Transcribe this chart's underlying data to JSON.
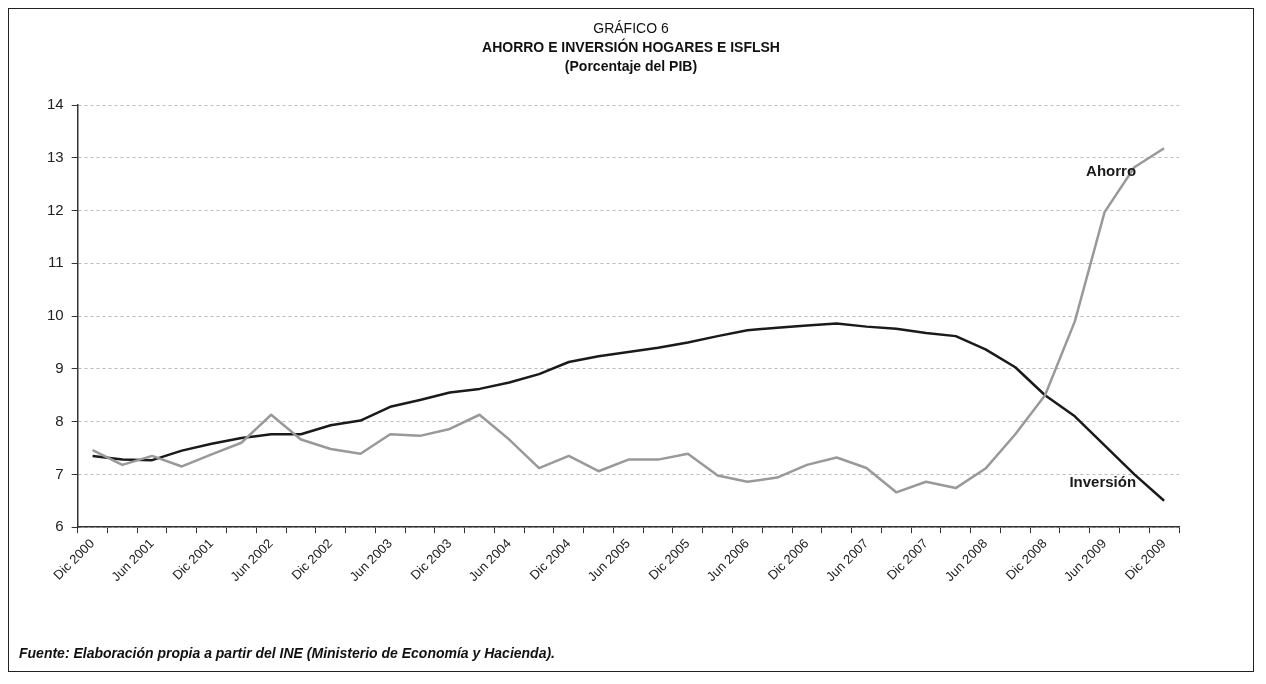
{
  "chart_data": {
    "type": "line",
    "title": "AHORRO E INVERSIÓN HOGARES E ISFLSH",
    "subtitle": "(Porcentaje del PIB)",
    "annotations": [
      "GRÁFICO 6",
      "Fuente: Elaboración propia a partir del INE (Ministerio de Economía y Hacienda)."
    ],
    "categories": [
      "Dic 2000",
      null,
      "Jun 2001",
      null,
      "Dic 2001",
      null,
      "Jun 2002",
      null,
      "Dic 2002",
      null,
      "Jun 2003",
      null,
      "Dic 2003",
      null,
      "Jun 2004",
      null,
      "Dic 2004",
      null,
      "Jun 2005",
      null,
      "Dic 2005",
      null,
      "Jun 2006",
      null,
      "Dic 2006",
      null,
      "Jun 2007",
      null,
      "Dic 2007",
      null,
      "Jun 2008",
      null,
      "Dic 2008",
      null,
      "Jun 2009",
      null,
      "Dic 2009"
    ],
    "series": [
      {
        "name": "Ahorro",
        "color": "#999999",
        "values": [
          7.46,
          7.18,
          7.35,
          7.15,
          7.38,
          7.6,
          8.13,
          7.66,
          7.48,
          7.39,
          7.76,
          7.73,
          7.86,
          8.13,
          7.66,
          7.12,
          7.35,
          7.06,
          7.28,
          7.28,
          7.39,
          6.98,
          6.86,
          6.94,
          7.18,
          7.32,
          7.12,
          6.66,
          6.86,
          6.74,
          7.11,
          7.76,
          8.5,
          9.9,
          11.97,
          12.82,
          13.18
        ]
      },
      {
        "name": "Inversión",
        "color": "#1a1a1a",
        "values": [
          7.35,
          7.28,
          7.27,
          7.45,
          7.58,
          7.69,
          7.76,
          7.76,
          7.93,
          8.02,
          8.28,
          8.41,
          8.55,
          8.62,
          8.74,
          8.9,
          9.13,
          9.24,
          9.32,
          9.4,
          9.5,
          9.62,
          9.73,
          9.78,
          9.82,
          9.86,
          9.8,
          9.76,
          9.68,
          9.62,
          9.37,
          9.03,
          8.5,
          8.1,
          7.55,
          7.0,
          6.5
        ]
      }
    ],
    "ylim": [
      6,
      14
    ],
    "yticks": [
      6,
      7,
      8,
      9,
      10,
      11,
      12,
      13,
      14
    ],
    "grid": "y",
    "legend": false,
    "marker": "none",
    "line_style": "solid"
  }
}
